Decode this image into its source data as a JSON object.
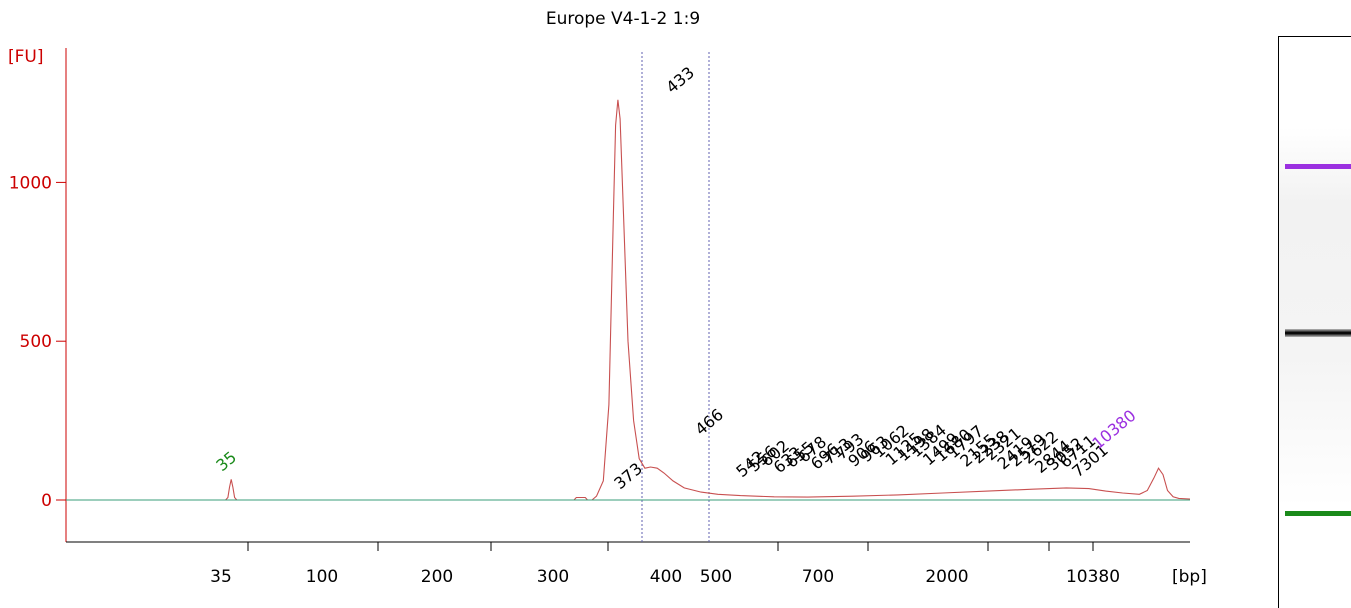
{
  "chart_data": {
    "type": "line",
    "title": "Europe V4-1-2 1:9",
    "ylabel": "[FU]",
    "xlabel": "[bp]",
    "ylim": [
      -130,
      1400
    ],
    "y_ticks": [
      0,
      500,
      1000
    ],
    "x_ticks": [
      "35",
      "100",
      "200",
      "300",
      "400",
      "500",
      "700",
      "2000",
      "10380"
    ],
    "markers": {
      "lower": "35",
      "upper": "10380",
      "lower_color": "#1a8a1a",
      "upper_color": "#9b30e0"
    },
    "peak_labels": [
      "35",
      "373",
      "433",
      "466",
      "542",
      "556",
      "602",
      "633",
      "655",
      "678",
      "696",
      "713",
      "793",
      "906",
      "963",
      "1062",
      "1125",
      "1198",
      "1384",
      "1499",
      "1680",
      "1797",
      "2155",
      "2238",
      "2321",
      "2419",
      "2519",
      "2622",
      "2844",
      "3052",
      "6711",
      "7301",
      "10380"
    ],
    "series": [
      {
        "color": "#c85050",
        "points": [
          [
            0,
            0
          ],
          [
            0.142,
            0
          ],
          [
            0.144,
            8
          ],
          [
            0.1455,
            40
          ],
          [
            0.147,
            65
          ],
          [
            0.1485,
            40
          ],
          [
            0.15,
            8
          ],
          [
            0.152,
            0
          ],
          [
            0.44,
            0
          ],
          [
            0.452,
            0
          ],
          [
            0.454,
            8
          ],
          [
            0.462,
            8
          ],
          [
            0.464,
            0
          ],
          [
            0.468,
            0
          ],
          [
            0.472,
            12
          ],
          [
            0.478,
            60
          ],
          [
            0.483,
            300
          ],
          [
            0.487,
            900
          ],
          [
            0.489,
            1180
          ],
          [
            0.491,
            1260
          ],
          [
            0.493,
            1200
          ],
          [
            0.496,
            900
          ],
          [
            0.5,
            500
          ],
          [
            0.505,
            250
          ],
          [
            0.51,
            130
          ],
          [
            0.515,
            100
          ],
          [
            0.52,
            104
          ],
          [
            0.526,
            100
          ],
          [
            0.532,
            85
          ],
          [
            0.54,
            60
          ],
          [
            0.55,
            38
          ],
          [
            0.565,
            25
          ],
          [
            0.58,
            18
          ],
          [
            0.6,
            14
          ],
          [
            0.63,
            10
          ],
          [
            0.66,
            9
          ],
          [
            0.7,
            12
          ],
          [
            0.74,
            16
          ],
          [
            0.78,
            22
          ],
          [
            0.82,
            28
          ],
          [
            0.86,
            34
          ],
          [
            0.89,
            38
          ],
          [
            0.91,
            36
          ],
          [
            0.925,
            28
          ],
          [
            0.94,
            22
          ],
          [
            0.955,
            18
          ],
          [
            0.962,
            30
          ],
          [
            0.968,
            70
          ],
          [
            0.972,
            100
          ],
          [
            0.976,
            80
          ],
          [
            0.98,
            30
          ],
          [
            0.985,
            10
          ],
          [
            0.99,
            5
          ],
          [
            1.0,
            3
          ]
        ]
      },
      {
        "color": "#3a9c7a",
        "points": [
          [
            0.0,
            0
          ],
          [
            1.0,
            0
          ]
        ]
      }
    ]
  },
  "gel": {
    "lane_background": "#f3f3f3",
    "bands": [
      {
        "level": "top_marker",
        "color": "#9b30e0"
      },
      {
        "level": "main_band",
        "color": "#000000"
      },
      {
        "level": "bottom_marker",
        "color": "#1a8a1a"
      }
    ]
  }
}
